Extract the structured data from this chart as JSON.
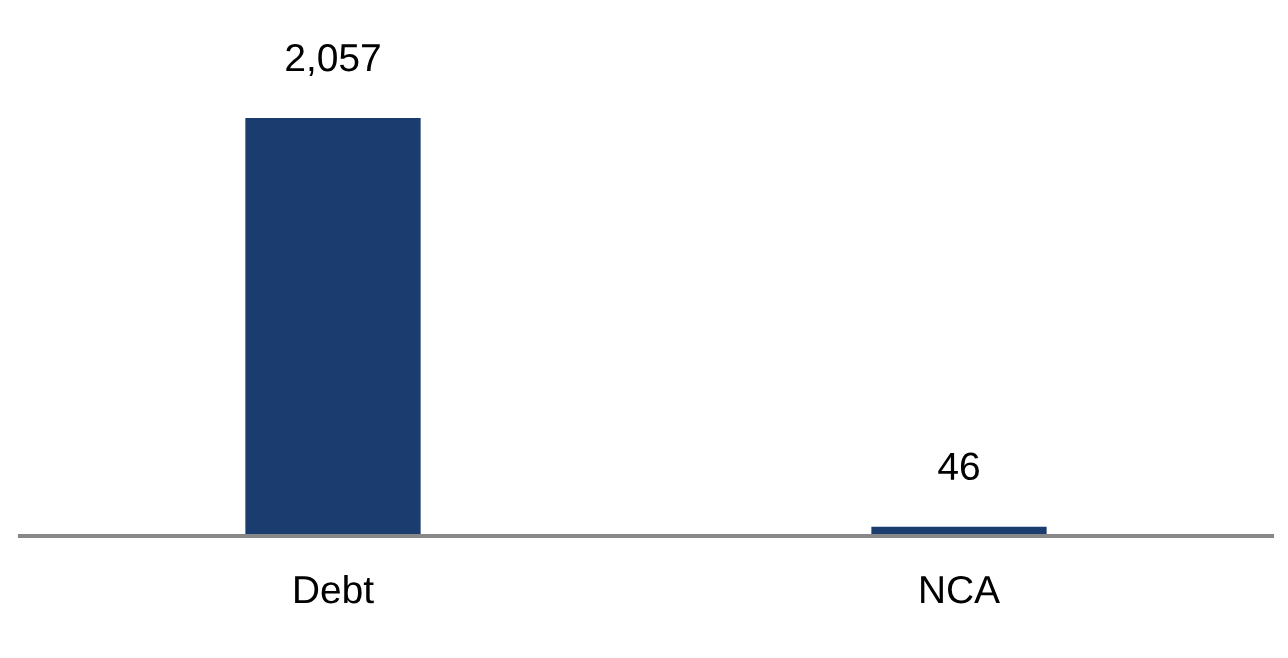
{
  "chart_data": {
    "type": "bar",
    "categories": [
      "Debt",
      "NCA"
    ],
    "values": [
      2057,
      46
    ],
    "value_labels": [
      "2,057",
      "46"
    ],
    "color": "#1a3c6e",
    "grid": false,
    "legend": false
  }
}
